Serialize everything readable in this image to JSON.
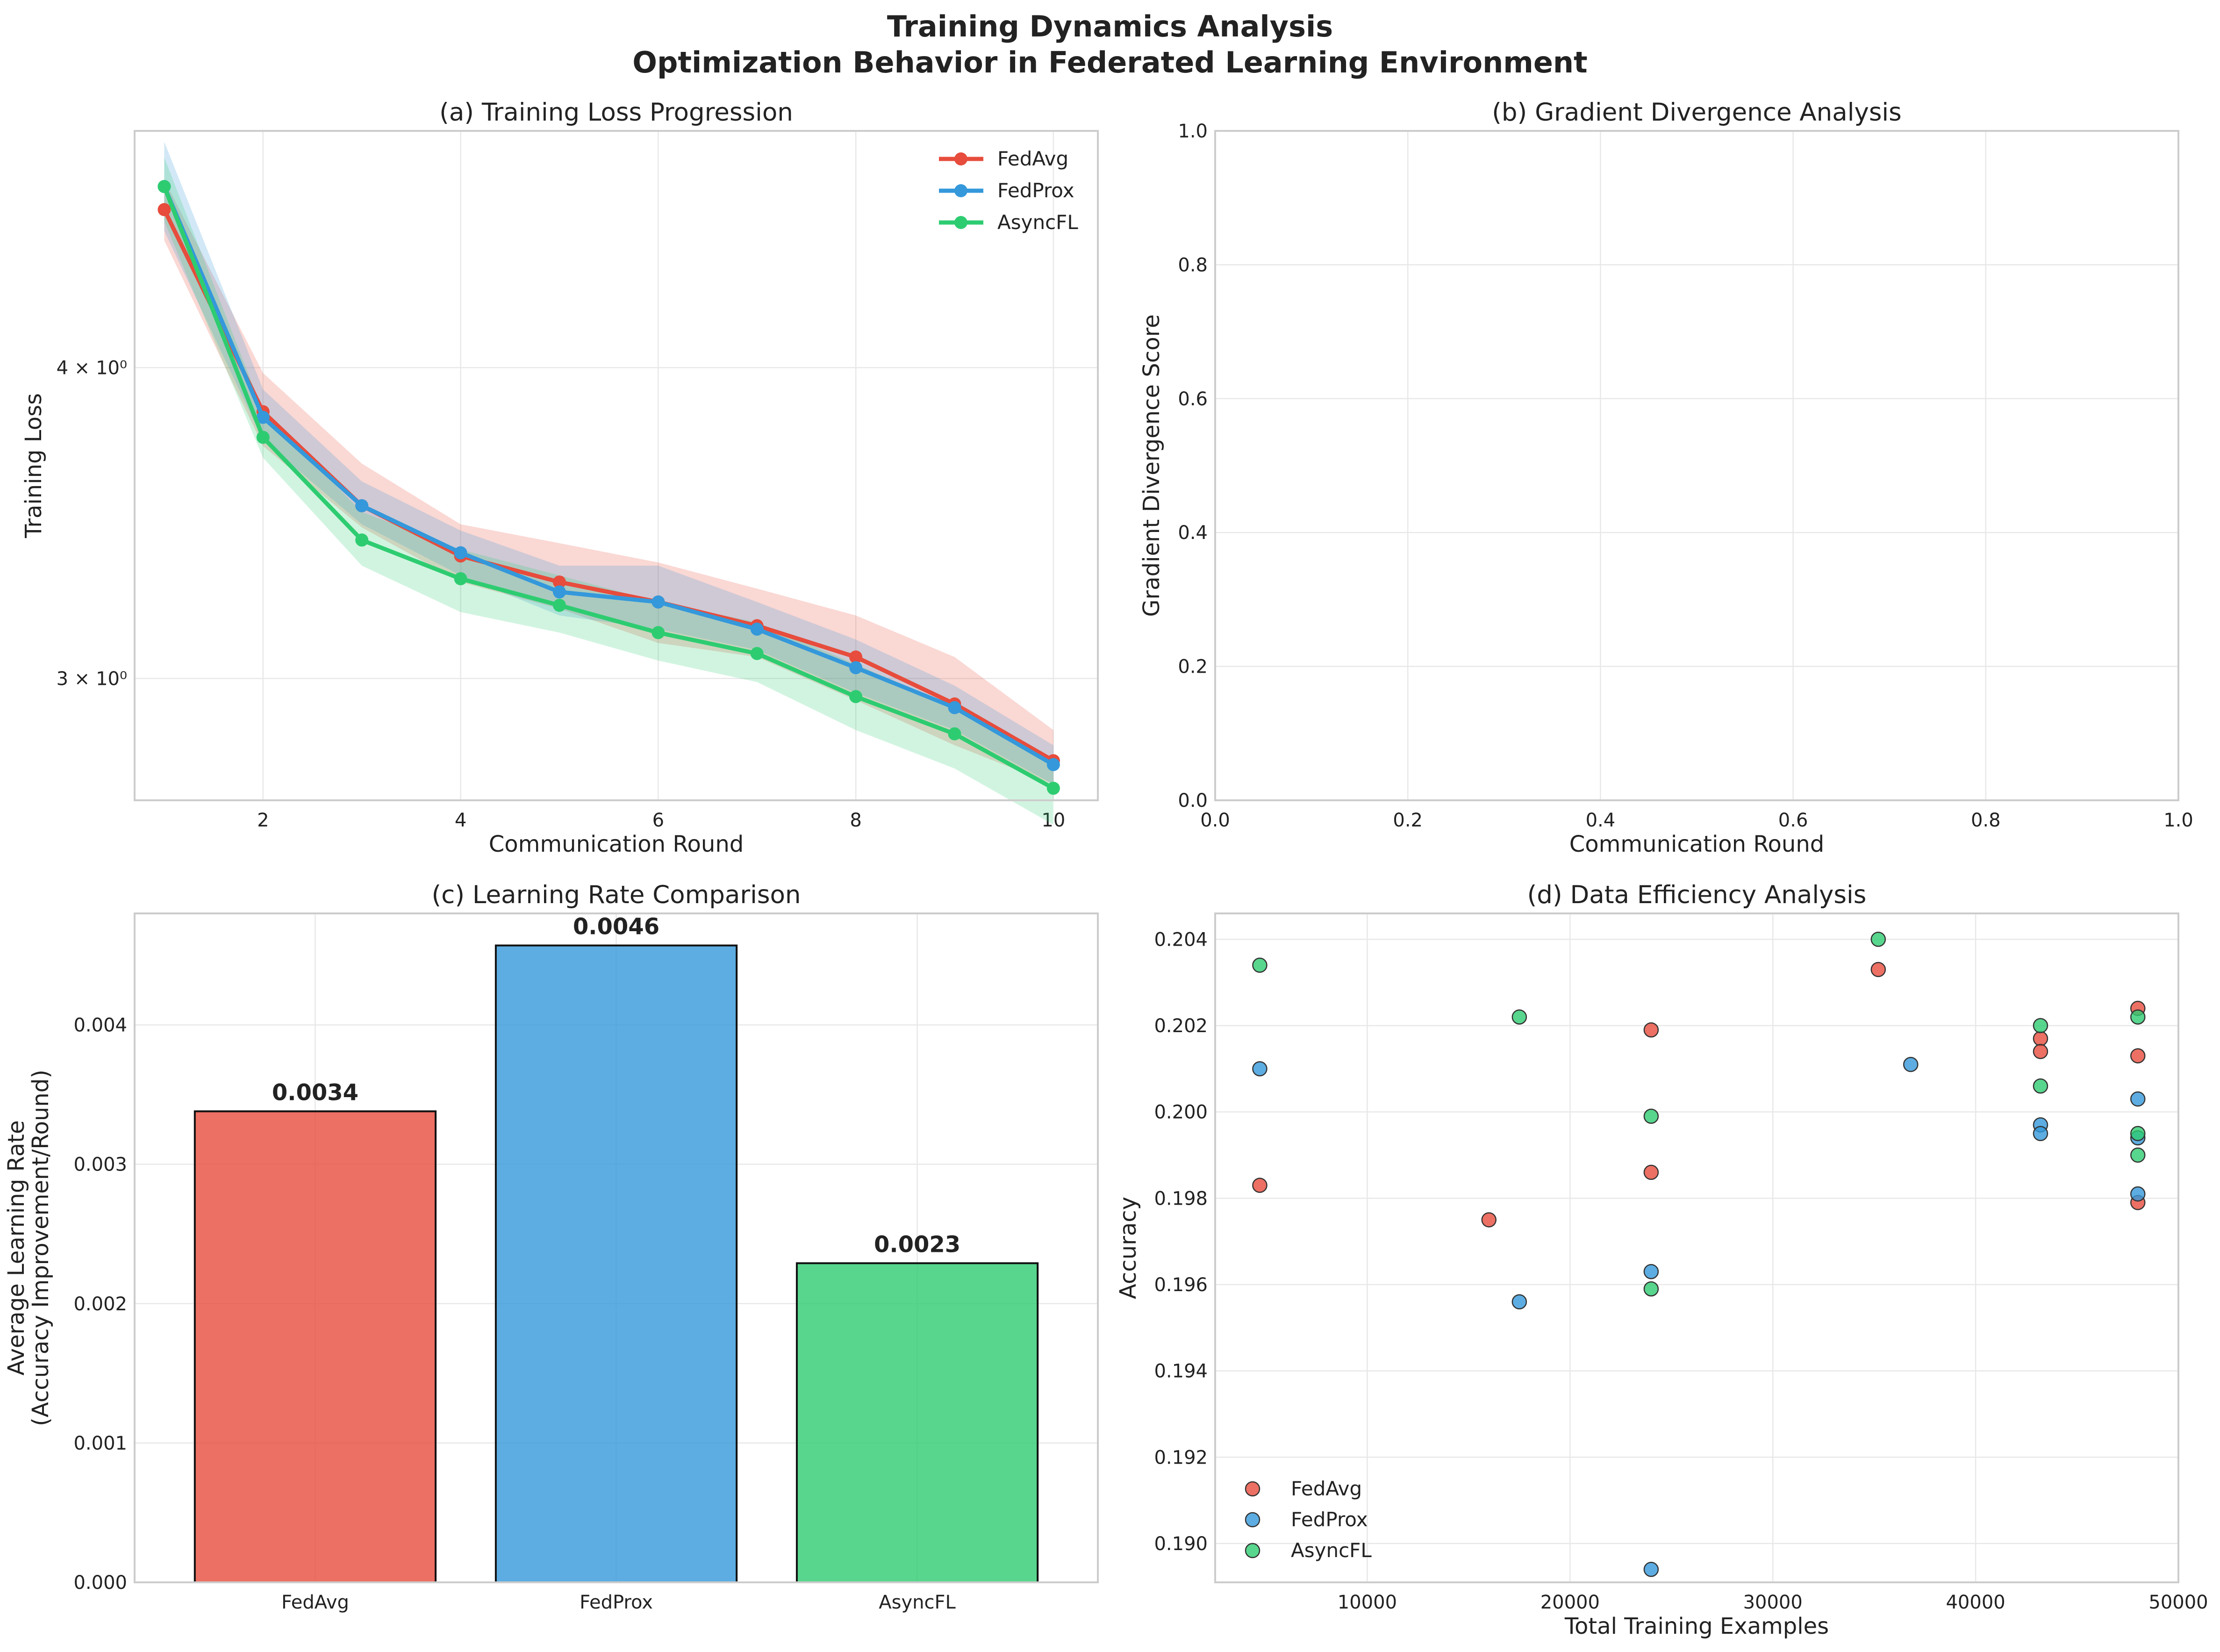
{
  "figure": {
    "title": "Training Dynamics Analysis",
    "subtitle": "Optimization Behavior in Federated Learning Environment"
  },
  "colors": {
    "FedAvg": "#e74c3c",
    "FedProx": "#3498db",
    "AsyncFL": "#2ecc71"
  },
  "chart_data": [
    {
      "id": "a",
      "type": "line",
      "title": "(a) Training Loss Progression",
      "xlabel": "Communication Round",
      "ylabel": "Training Loss",
      "yscale": "log",
      "xlim": [
        0.7,
        10.45
      ],
      "ylim": [
        2.68,
        4.98
      ],
      "xticks": [
        2,
        4,
        6,
        8,
        10
      ],
      "yticks": [
        3,
        4
      ],
      "yticklabels": [
        "3 × 10⁰",
        "4 × 10⁰"
      ],
      "grid": true,
      "legend": "top-right",
      "x": [
        1,
        2,
        3,
        4,
        5,
        6,
        7,
        8,
        9,
        10
      ],
      "series": [
        {
          "name": "FedAvg",
          "values": [
            4.63,
            3.84,
            3.52,
            3.36,
            3.28,
            3.22,
            3.15,
            3.06,
            2.93,
            2.78
          ],
          "lower": [
            4.5,
            3.72,
            3.45,
            3.28,
            3.2,
            3.1,
            3.06,
            2.94,
            2.82,
            2.72
          ],
          "upper": [
            4.76,
            3.98,
            3.66,
            3.46,
            3.4,
            3.34,
            3.26,
            3.18,
            3.06,
            2.86
          ]
        },
        {
          "name": "FedProx",
          "values": [
            4.73,
            3.82,
            3.52,
            3.37,
            3.25,
            3.22,
            3.14,
            3.03,
            2.92,
            2.77
          ],
          "lower": [
            4.54,
            3.74,
            3.46,
            3.3,
            3.18,
            3.14,
            3.08,
            2.96,
            2.86,
            2.72
          ],
          "upper": [
            4.93,
            3.92,
            3.6,
            3.44,
            3.33,
            3.33,
            3.22,
            3.11,
            2.98,
            2.82
          ]
        },
        {
          "name": "AsyncFL",
          "values": [
            4.73,
            3.75,
            3.41,
            3.29,
            3.21,
            3.13,
            3.07,
            2.95,
            2.85,
            2.71
          ],
          "lower": [
            4.58,
            3.68,
            3.33,
            3.19,
            3.13,
            3.05,
            2.99,
            2.86,
            2.76,
            2.62
          ],
          "upper": [
            4.86,
            3.84,
            3.5,
            3.38,
            3.3,
            3.22,
            3.16,
            3.04,
            2.92,
            2.78
          ]
        }
      ]
    },
    {
      "id": "b",
      "type": "line",
      "title": "(b) Gradient Divergence Analysis",
      "xlabel": "Communication Round",
      "ylabel": "Gradient Divergence Score",
      "xlim": [
        0,
        1
      ],
      "ylim": [
        0,
        1
      ],
      "xticks": [
        0.0,
        0.2,
        0.4,
        0.6,
        0.8,
        1.0
      ],
      "yticks": [
        0.0,
        0.2,
        0.4,
        0.6,
        0.8,
        1.0
      ],
      "grid": true,
      "series": []
    },
    {
      "id": "c",
      "type": "bar",
      "title": "(c) Learning Rate Comparison",
      "xlabel": "",
      "ylabel": [
        "Average Learning Rate",
        "(Accuracy Improvement/Round)"
      ],
      "ylim": [
        0,
        0.0048
      ],
      "yticks": [
        0.0,
        0.001,
        0.002,
        0.003,
        0.004
      ],
      "yticklabels": [
        "0.000",
        "0.001",
        "0.002",
        "0.003",
        "0.004"
      ],
      "grid": true,
      "categories": [
        "FedAvg",
        "FedProx",
        "AsyncFL"
      ],
      "values": [
        0.00338,
        0.00457,
        0.00229
      ],
      "labels": [
        "0.0034",
        "0.0046",
        "0.0023"
      ]
    },
    {
      "id": "d",
      "type": "scatter",
      "title": "(d) Data Efficiency Analysis",
      "xlabel": "Total Training Examples",
      "ylabel": "Accuracy",
      "xlim": [
        2500,
        50000
      ],
      "ylim": [
        0.1891,
        0.2046
      ],
      "xticks": [
        10000,
        20000,
        30000,
        40000,
        50000
      ],
      "yticks": [
        0.19,
        0.192,
        0.194,
        0.196,
        0.198,
        0.2,
        0.202,
        0.204
      ],
      "yticklabels": [
        "0.190",
        "0.192",
        "0.194",
        "0.196",
        "0.198",
        "0.200",
        "0.202",
        "0.204"
      ],
      "grid": true,
      "legend": "bottom-left",
      "series": [
        {
          "name": "FedAvg",
          "points": [
            [
              4700,
              0.1983
            ],
            [
              16000,
              0.1975
            ],
            [
              24000,
              0.2019
            ],
            [
              24000,
              0.1986
            ],
            [
              35200,
              0.2033
            ],
            [
              43200,
              0.2017
            ],
            [
              43200,
              0.2014
            ],
            [
              48000,
              0.2024
            ],
            [
              48000,
              0.2013
            ],
            [
              48000,
              0.1979
            ]
          ]
        },
        {
          "name": "FedProx",
          "points": [
            [
              4700,
              0.201
            ],
            [
              17500,
              0.1956
            ],
            [
              24000,
              0.1963
            ],
            [
              24000,
              0.1894
            ],
            [
              36800,
              0.2011
            ],
            [
              43200,
              0.1997
            ],
            [
              43200,
              0.1995
            ],
            [
              48000,
              0.2003
            ],
            [
              48000,
              0.1994
            ],
            [
              48000,
              0.1981
            ]
          ]
        },
        {
          "name": "AsyncFL",
          "points": [
            [
              4700,
              0.2034
            ],
            [
              17500,
              0.2022
            ],
            [
              24000,
              0.1999
            ],
            [
              24000,
              0.1959
            ],
            [
              35200,
              0.204
            ],
            [
              43200,
              0.202
            ],
            [
              43200,
              0.2006
            ],
            [
              48000,
              0.2022
            ],
            [
              48000,
              0.1995
            ],
            [
              48000,
              0.199
            ]
          ]
        }
      ]
    }
  ]
}
